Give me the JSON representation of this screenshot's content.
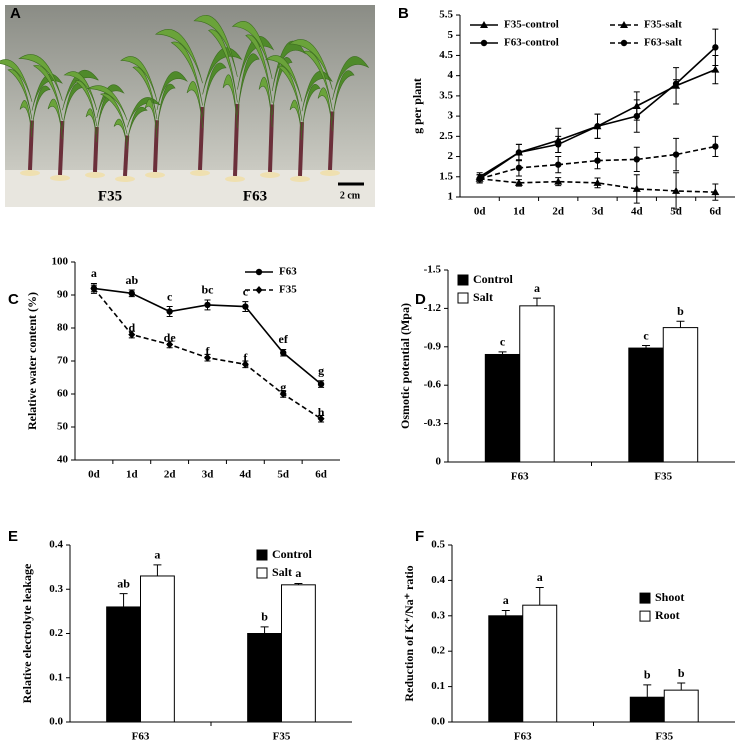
{
  "photo": {
    "panel": "A",
    "labels": [
      "F35",
      "F63"
    ],
    "scale_bar": "2 cm"
  },
  "chart_data": [
    {
      "type": "line",
      "panel": "B",
      "y_label": "g per plant",
      "categories": [
        "0d",
        "1d",
        "2d",
        "3d",
        "4d",
        "5d",
        "6d"
      ],
      "ylim": [
        1,
        5.5
      ],
      "yticks": [
        1,
        1.5,
        2,
        2.5,
        3,
        3.5,
        4,
        4.5,
        5,
        5.5
      ],
      "legend_position": "top-left",
      "legend_columns": 2,
      "series": [
        {
          "name": "F35-control",
          "color": "#000000",
          "marker": "triangle",
          "dashed": false,
          "values": [
            1.5,
            2.1,
            2.4,
            2.75,
            3.25,
            3.75,
            4.15
          ],
          "errors": [
            0.1,
            0.2,
            0.3,
            0.3,
            0.35,
            0.45,
            0.35
          ]
        },
        {
          "name": "F35-salt",
          "color": "#000000",
          "marker": "triangle",
          "dashed": true,
          "values": [
            1.45,
            1.35,
            1.38,
            1.35,
            1.2,
            1.15,
            1.12
          ],
          "errors": [
            0.1,
            0.08,
            0.1,
            0.12,
            0.35,
            0.45,
            0.2
          ]
        },
        {
          "name": "F63-control",
          "color": "#000000",
          "marker": "circle",
          "dashed": false,
          "values": [
            1.45,
            2.1,
            2.3,
            2.75,
            3.0,
            3.8,
            4.7
          ],
          "errors": [
            0.1,
            0.2,
            0.2,
            0.3,
            0.4,
            0.1,
            0.45
          ]
        },
        {
          "name": "F63-salt",
          "color": "#000000",
          "marker": "circle",
          "dashed": true,
          "values": [
            1.45,
            1.72,
            1.8,
            1.9,
            1.93,
            2.05,
            2.25
          ],
          "errors": [
            0.1,
            0.2,
            0.2,
            0.2,
            0.3,
            0.4,
            0.25
          ]
        }
      ]
    },
    {
      "type": "line",
      "panel": "C",
      "y_label": "Relative water content (%)",
      "categories": [
        "0d",
        "1d",
        "2d",
        "3d",
        "4d",
        "5d",
        "6d"
      ],
      "ylim": [
        40,
        100
      ],
      "yticks": [
        40,
        50,
        60,
        70,
        80,
        90,
        100
      ],
      "legend_position": "top-right",
      "legend_columns": 1,
      "series": [
        {
          "name": "F63",
          "color": "#000000",
          "marker": "circle",
          "dashed": false,
          "values": [
            92,
            90.5,
            85,
            87,
            86.5,
            72.5,
            63
          ],
          "errors": [
            1.5,
            1,
            1.5,
            1.5,
            1.5,
            1,
            1
          ],
          "letters": [
            "a",
            "ab",
            "c",
            "bc",
            "c",
            "ef",
            "g"
          ]
        },
        {
          "name": "F35",
          "color": "#000000",
          "marker": "diamond",
          "dashed": true,
          "values": [
            92,
            78,
            75,
            71,
            69,
            60,
            52.5
          ],
          "errors": [
            1,
            1,
            1,
            1,
            1,
            1,
            1
          ],
          "letters": [
            null,
            "d",
            "de",
            "f",
            "f",
            "g",
            "h"
          ]
        }
      ]
    },
    {
      "type": "bar",
      "panel": "D",
      "y_label": "Osmotic potential (Mpa)",
      "categories": [
        "F63",
        "F35"
      ],
      "ylim": [
        0,
        -1.5
      ],
      "yticks": [
        0,
        -0.3,
        -0.6,
        -0.9,
        -1.2,
        -1.5
      ],
      "legend_position": "top-left",
      "legend_columns": 1,
      "series": [
        {
          "name": "Control",
          "color": "#000000",
          "values": [
            -0.84,
            -0.89
          ],
          "errors": [
            0.02,
            0.02
          ],
          "letters": [
            "c",
            "c"
          ]
        },
        {
          "name": "Salt",
          "color": "#ffffff",
          "values": [
            -1.22,
            -1.05
          ],
          "errors": [
            0.06,
            0.05
          ],
          "letters": [
            "a",
            "b"
          ]
        }
      ]
    },
    {
      "type": "bar",
      "panel": "E",
      "y_label": "Relative electrolyte leakage",
      "categories": [
        "F63",
        "F35"
      ],
      "ylim": [
        0,
        0.4
      ],
      "yticks": [
        {
          "value": 0,
          "label": "0.0"
        },
        0.1,
        0.2,
        0.3,
        0.4
      ],
      "legend_position": "top-right",
      "legend_columns": 1,
      "series": [
        {
          "name": "Control",
          "color": "#000000",
          "values": [
            0.26,
            0.2
          ],
          "errors": [
            0.03,
            0.015
          ],
          "letters": [
            "ab",
            "b"
          ]
        },
        {
          "name": "Salt",
          "color": "#ffffff",
          "values": [
            0.33,
            0.31
          ],
          "errors": [
            0.025,
            0.003
          ],
          "letters": [
            "a",
            "a"
          ]
        }
      ]
    },
    {
      "type": "bar",
      "panel": "F",
      "y_label": "Reduction of K⁺/Na⁺ ratio",
      "categories": [
        "F63",
        "F35"
      ],
      "ylim": [
        0,
        0.5
      ],
      "yticks": [
        {
          "value": 0,
          "label": "0.0"
        },
        0.1,
        0.2,
        0.3,
        0.4,
        0.5
      ],
      "legend_position": "right",
      "legend_columns": 1,
      "series": [
        {
          "name": "Shoot",
          "color": "#000000",
          "values": [
            0.3,
            0.07
          ],
          "errors": [
            0.015,
            0.035
          ],
          "letters": [
            "a",
            "b"
          ]
        },
        {
          "name": "Root",
          "color": "#ffffff",
          "values": [
            0.33,
            0.09
          ],
          "errors": [
            0.05,
            0.02
          ],
          "letters": [
            "a",
            "b"
          ]
        }
      ]
    }
  ]
}
